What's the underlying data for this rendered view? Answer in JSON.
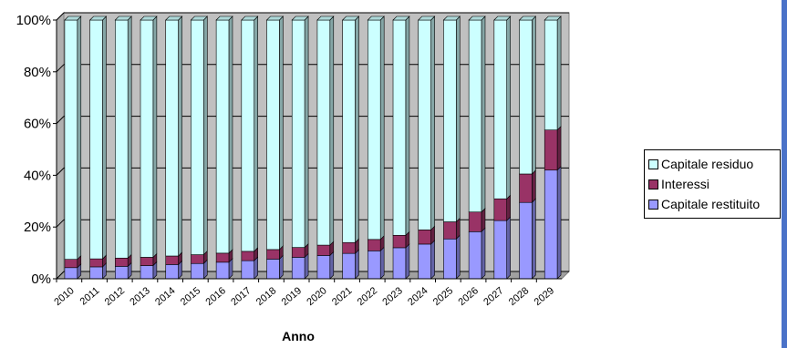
{
  "chart_data": {
    "type": "bar",
    "stacked": true,
    "percent": true,
    "xlabel": "Anno",
    "ylabel": "",
    "ylim": [
      0,
      100
    ],
    "yticks": [
      "0%",
      "20%",
      "40%",
      "60%",
      "80%",
      "100%"
    ],
    "grid": true,
    "legend_position": "right",
    "categories": [
      "2010",
      "2011",
      "2012",
      "2013",
      "2014",
      "2015",
      "2016",
      "2017",
      "2018",
      "2019",
      "2020",
      "2021",
      "2022",
      "2023",
      "2024",
      "2025",
      "2026",
      "2027",
      "2028",
      "2029"
    ],
    "series": [
      {
        "name": "Capitale restituito",
        "color": "#9999ff",
        "values": [
          4.3,
          4.6,
          4.8,
          5.1,
          5.5,
          5.9,
          6.4,
          7.0,
          7.6,
          8.3,
          9.0,
          9.8,
          10.8,
          12.0,
          13.4,
          15.4,
          18.2,
          22.5,
          29.5,
          42.0
        ]
      },
      {
        "name": "Interessi",
        "color": "#993366",
        "values": [
          3.2,
          3.1,
          3.2,
          3.2,
          3.3,
          3.4,
          3.5,
          3.6,
          3.7,
          3.8,
          4.0,
          4.2,
          4.4,
          4.8,
          5.5,
          6.6,
          7.6,
          8.4,
          11.0,
          15.5
        ]
      },
      {
        "name": "Capitale residuo",
        "color": "#ccffff",
        "values": [
          92.5,
          92.3,
          92.0,
          91.7,
          91.2,
          90.7,
          90.1,
          89.4,
          88.7,
          87.9,
          87.0,
          86.0,
          84.8,
          83.2,
          81.1,
          78.0,
          74.2,
          69.1,
          59.5,
          42.5
        ]
      }
    ]
  }
}
